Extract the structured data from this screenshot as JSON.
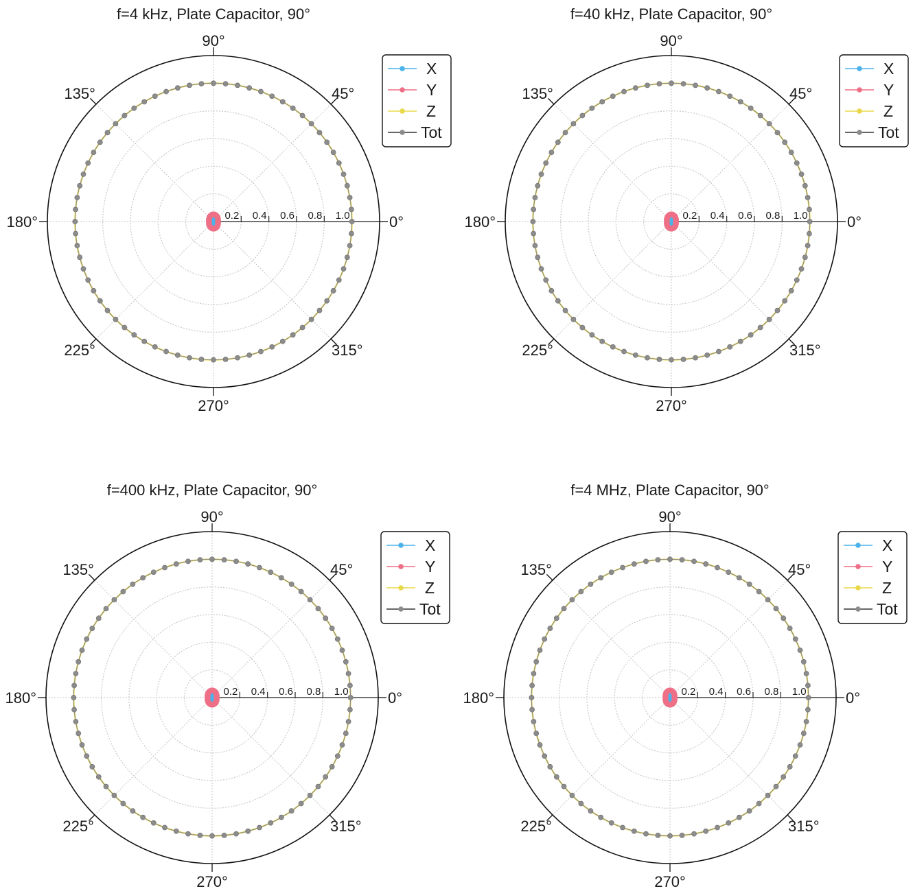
{
  "chart_data": [
    {
      "type": "polar",
      "title": "f=4 kHz, Plate Capacitor, 90°",
      "angle_ticks": [
        "0°",
        "45°",
        "90°",
        "135°",
        "180°",
        "225°",
        "270°",
        "315°"
      ],
      "radial_ticks": [
        "0.2",
        "0.4",
        "0.6",
        "0.8",
        "1.0"
      ],
      "rlim": [
        0,
        1.2
      ],
      "grid": true,
      "legend_position": "top-right",
      "series": [
        {
          "name": "X",
          "color": "#4cb3ea",
          "radius": 0.02
        },
        {
          "name": "Y",
          "color": "#ee6f86",
          "radius": 0.04
        },
        {
          "name": "Z",
          "color": "#e9d84a",
          "radius": 1.0
        },
        {
          "name": "Tot",
          "color": "#8c8c8c",
          "radius": 1.0
        }
      ]
    },
    {
      "type": "polar",
      "title": "f=40 kHz, Plate Capacitor, 90°",
      "angle_ticks": [
        "0°",
        "45°",
        "90°",
        "135°",
        "180°",
        "225°",
        "270°",
        "315°"
      ],
      "radial_ticks": [
        "0.2",
        "0.4",
        "0.6",
        "0.8",
        "1.0"
      ],
      "rlim": [
        0,
        1.2
      ],
      "grid": true,
      "legend_position": "top-right",
      "series": [
        {
          "name": "X",
          "color": "#4cb3ea",
          "radius": 0.02
        },
        {
          "name": "Y",
          "color": "#ee6f86",
          "radius": 0.04
        },
        {
          "name": "Z",
          "color": "#e9d84a",
          "radius": 1.0
        },
        {
          "name": "Tot",
          "color": "#8c8c8c",
          "radius": 1.0
        }
      ]
    },
    {
      "type": "polar",
      "title": "f=400 kHz, Plate Capacitor, 90°",
      "angle_ticks": [
        "0°",
        "45°",
        "90°",
        "135°",
        "180°",
        "225°",
        "270°",
        "315°"
      ],
      "radial_ticks": [
        "0.2",
        "0.4",
        "0.6",
        "0.8",
        "1.0"
      ],
      "rlim": [
        0,
        1.2
      ],
      "grid": true,
      "legend_position": "top-right",
      "series": [
        {
          "name": "X",
          "color": "#4cb3ea",
          "radius": 0.02
        },
        {
          "name": "Y",
          "color": "#ee6f86",
          "radius": 0.04
        },
        {
          "name": "Z",
          "color": "#e9d84a",
          "radius": 1.0
        },
        {
          "name": "Tot",
          "color": "#8c8c8c",
          "radius": 1.0
        }
      ]
    },
    {
      "type": "polar",
      "title": "f=4 MHz, Plate Capacitor, 90°",
      "angle_ticks": [
        "0°",
        "45°",
        "90°",
        "135°",
        "180°",
        "225°",
        "270°",
        "315°"
      ],
      "radial_ticks": [
        "0.2",
        "0.4",
        "0.6",
        "0.8",
        "1.0"
      ],
      "rlim": [
        0,
        1.2
      ],
      "grid": true,
      "legend_position": "top-right",
      "series": [
        {
          "name": "X",
          "color": "#4cb3ea",
          "radius": 0.02
        },
        {
          "name": "Y",
          "color": "#ee6f86",
          "radius": 0.04
        },
        {
          "name": "Z",
          "color": "#e9d84a",
          "radius": 1.0
        },
        {
          "name": "Tot",
          "color": "#8c8c8c",
          "radius": 1.0
        }
      ]
    }
  ]
}
